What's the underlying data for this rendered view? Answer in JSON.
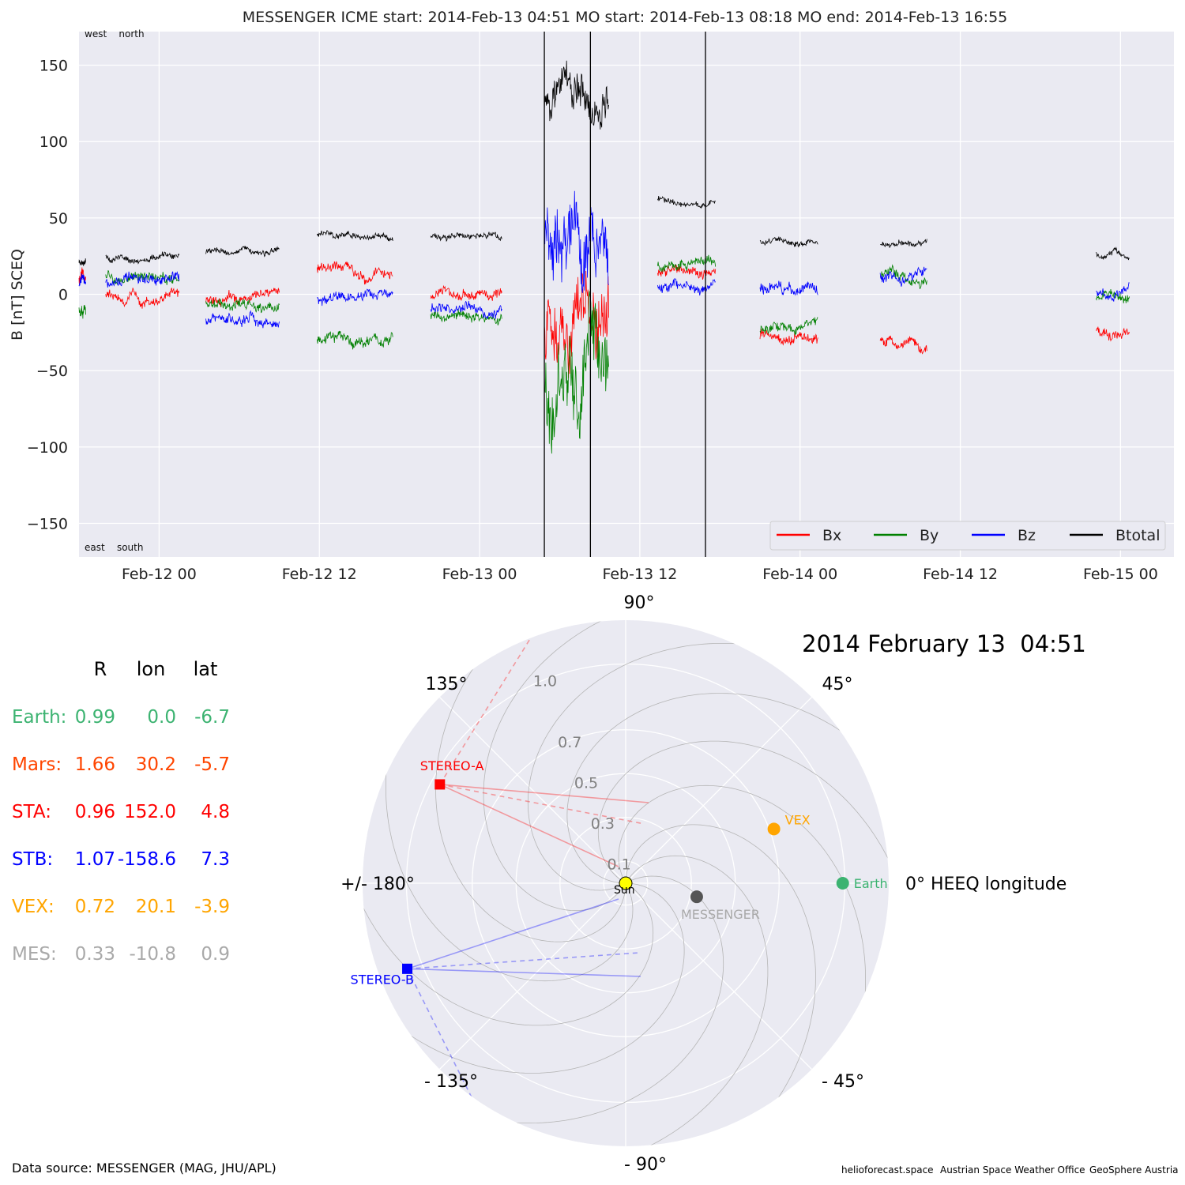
{
  "chart_data": [
    {
      "type": "line",
      "title": "MESSENGER    ICME start: 2014-Feb-13 04:51   MO start: 2014-Feb-13 08:18   MO end: 2014-Feb-13 16:55",
      "ylabel": "B [nT] SCEQ",
      "ylim": [
        -172,
        172
      ],
      "xlim": [
        "2014-02-11 18:00",
        "2014-02-15 04:00"
      ],
      "x_ticks": [
        "Feb-12 00",
        "Feb-12 12",
        "Feb-13 00",
        "Feb-13 12",
        "Feb-14 00",
        "Feb-14 12",
        "Feb-15 00"
      ],
      "y_ticks": [
        150,
        100,
        50,
        0,
        -50,
        -100,
        -150
      ],
      "corner_labels": {
        "top": "west    north",
        "bottom": "east    south"
      },
      "grid": true,
      "legend_position": "lower-right",
      "event_lines": [
        "2014-02-13 04:51",
        "2014-02-13 08:18",
        "2014-02-13 16:55"
      ],
      "series": [
        {
          "name": "Bx",
          "color": "#ff0000"
        },
        {
          "name": "By",
          "color": "#008000"
        },
        {
          "name": "Bz",
          "color": "#0000ff"
        },
        {
          "name": "Btotal",
          "color": "#000000"
        }
      ],
      "segments": [
        {
          "start": "2014-02-11 18:00",
          "end": "2014-02-11 18:30",
          "Btotal": 22,
          "Bx": 10,
          "By": -12,
          "Bz": 8
        },
        {
          "start": "2014-02-11 20:00",
          "end": "2014-02-12 01:30",
          "Btotal": 24,
          "Bx": -2,
          "By": 12,
          "Bz": 8
        },
        {
          "start": "2014-02-12 03:30",
          "end": "2014-02-12 09:00",
          "Btotal": 28,
          "Bx": -2,
          "By": -5,
          "Bz": -18
        },
        {
          "start": "2014-02-12 11:50",
          "end": "2014-02-12 17:30",
          "Btotal": 38,
          "Bx": 15,
          "By": -30,
          "Bz": -3
        },
        {
          "start": "2014-02-12 20:20",
          "end": "2014-02-13 01:40",
          "Btotal": 38,
          "Bx": 0,
          "By": -15,
          "Bz": -10
        },
        {
          "start": "2014-02-13 04:51",
          "end": "2014-02-13 09:40",
          "Btotal": 130,
          "Bx": -20,
          "By": -50,
          "Bz": 40
        },
        {
          "start": "2014-02-13 13:20",
          "end": "2014-02-13 17:40",
          "Btotal": 62,
          "Bx": 15,
          "By": 20,
          "Bz": 5
        },
        {
          "start": "2014-02-13 21:00",
          "end": "2014-02-14 01:20",
          "Btotal": 34,
          "Bx": -28,
          "By": -22,
          "Bz": 2
        },
        {
          "start": "2014-02-14 06:00",
          "end": "2014-02-14 09:30",
          "Btotal": 33,
          "Bx": -32,
          "By": 12,
          "Bz": 12
        },
        {
          "start": "2014-02-14 22:10",
          "end": "2014-02-15 00:40",
          "Btotal": 26,
          "Bx": -25,
          "By": -3,
          "Bz": 0
        }
      ]
    },
    {
      "type": "polar",
      "title": "2014 February 13  04:51",
      "theta_labels": [
        "90°",
        "45°",
        "0° HEEQ longitude",
        "- 45°",
        "- 90°",
        "- 135°",
        "+/- 180°",
        "135°"
      ],
      "r_ticks": [
        0.1,
        0.3,
        0.5,
        0.7,
        1.0
      ],
      "rlim": [
        0,
        1.2
      ],
      "points": [
        {
          "name": "Earth",
          "r": 0.99,
          "lon": 0.0,
          "color": "#3cb371",
          "marker": "circle"
        },
        {
          "name": "VEX",
          "r": 0.72,
          "lon": 20.1,
          "color": "#ffa500",
          "marker": "circle"
        },
        {
          "name": "MESSENGER",
          "r": 0.33,
          "lon": -10.8,
          "color": "#555555",
          "marker": "circle"
        },
        {
          "name": "STEREO-A",
          "r": 0.96,
          "lon": 152.0,
          "color": "#ff0000",
          "marker": "square"
        },
        {
          "name": "STEREO-B",
          "r": 1.07,
          "lon": -158.6,
          "color": "#0000ff",
          "marker": "square"
        },
        {
          "name": "Sun",
          "r": 0.0,
          "lon": 0.0,
          "color": "#ffff00",
          "marker": "circle"
        }
      ]
    }
  ],
  "positions_table": {
    "headers": [
      "R",
      "lon",
      "lat"
    ],
    "rows": [
      {
        "name": "Earth:",
        "R": "0.99",
        "lon": "0.0",
        "lat": "-6.7",
        "color": "#3cb371"
      },
      {
        "name": "Mars:",
        "R": "1.66",
        "lon": "30.2",
        "lat": "-5.7",
        "color": "#ff4500"
      },
      {
        "name": "STA:",
        "R": "0.96",
        "lon": "152.0",
        "lat": "4.8",
        "color": "#ff0000"
      },
      {
        "name": "STB:",
        "R": "1.07",
        "lon": "-158.6",
        "lat": "7.3",
        "color": "#0000ff"
      },
      {
        "name": "VEX:",
        "R": "0.72",
        "lon": "20.1",
        "lat": "-3.9",
        "color": "#ffa500"
      },
      {
        "name": "MES:",
        "R": "0.33",
        "lon": "-10.8",
        "lat": "0.9",
        "color": "#a9a9a9"
      }
    ]
  },
  "footer": {
    "source": "Data source: MESSENGER (MAG, JHU/APL)",
    "credits": [
      "helioforecast.space",
      "Austrian Space Weather Office",
      "GeoSphere Austria"
    ]
  }
}
